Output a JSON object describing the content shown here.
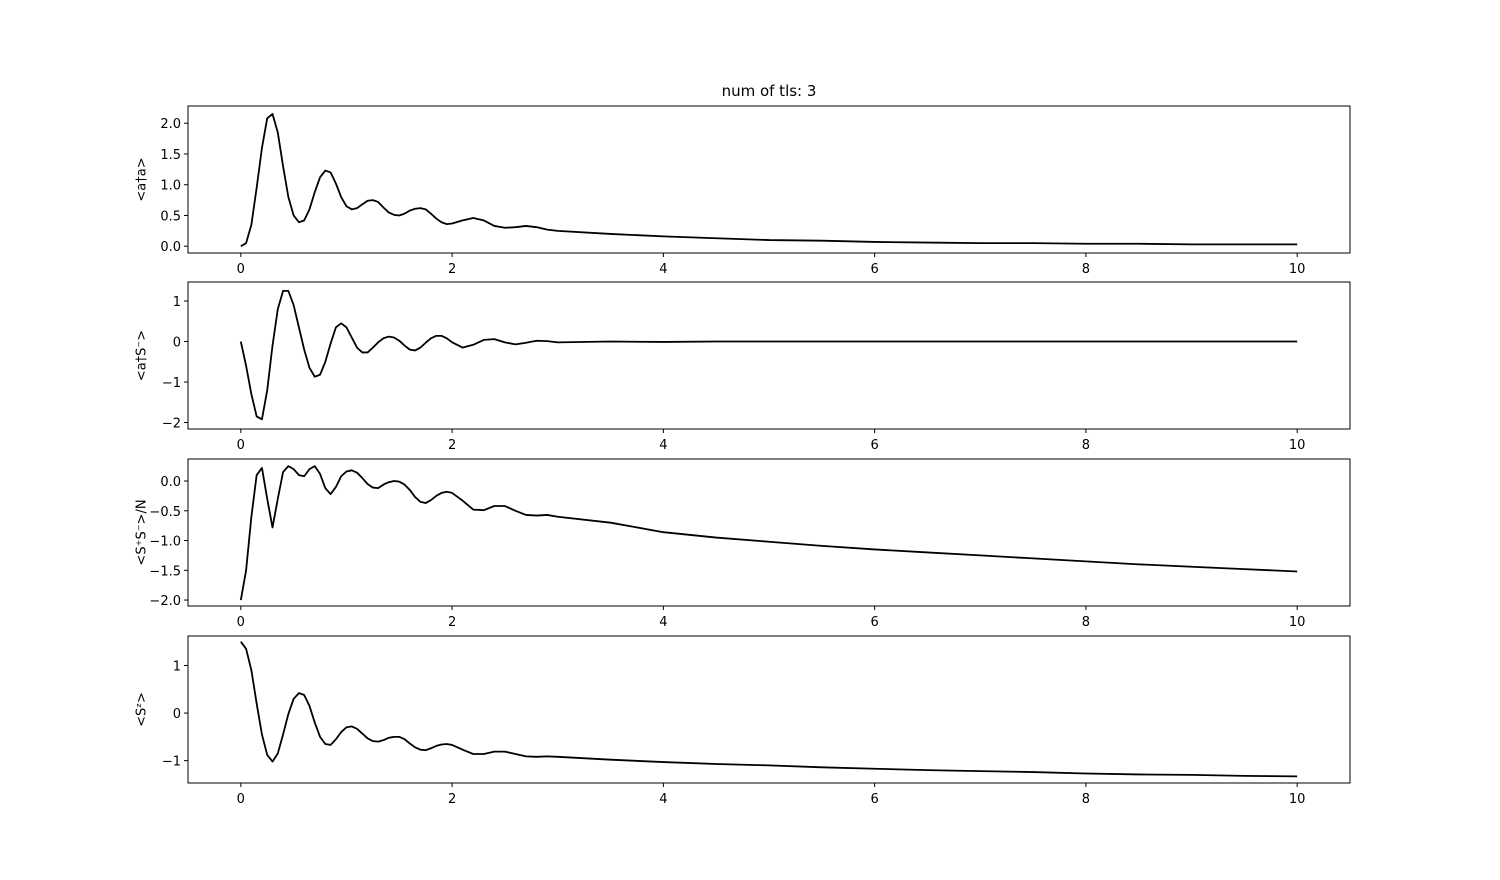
{
  "chart_data": [
    {
      "type": "line",
      "title": "num of tls: 3",
      "ylabel": "<a†a>",
      "x": [
        0,
        0.05,
        0.1,
        0.15,
        0.2,
        0.25,
        0.3,
        0.35,
        0.4,
        0.45,
        0.5,
        0.55,
        0.6,
        0.65,
        0.7,
        0.75,
        0.8,
        0.85,
        0.9,
        0.95,
        1.0,
        1.05,
        1.1,
        1.15,
        1.2,
        1.25,
        1.3,
        1.35,
        1.4,
        1.45,
        1.5,
        1.55,
        1.6,
        1.65,
        1.7,
        1.75,
        1.8,
        1.85,
        1.9,
        1.95,
        2.0,
        2.1,
        2.2,
        2.3,
        2.4,
        2.5,
        2.6,
        2.7,
        2.8,
        2.9,
        3.0,
        3.5,
        4,
        4.5,
        5,
        5.5,
        6,
        6.5,
        7,
        7.5,
        8,
        8.5,
        9,
        9.5,
        10
      ],
      "values": [
        0,
        0.05,
        0.35,
        0.95,
        1.6,
        2.08,
        2.15,
        1.85,
        1.3,
        0.8,
        0.5,
        0.39,
        0.42,
        0.6,
        0.88,
        1.12,
        1.23,
        1.2,
        1.02,
        0.8,
        0.65,
        0.6,
        0.62,
        0.68,
        0.74,
        0.75,
        0.72,
        0.63,
        0.55,
        0.51,
        0.5,
        0.53,
        0.58,
        0.61,
        0.62,
        0.6,
        0.53,
        0.45,
        0.39,
        0.36,
        0.37,
        0.42,
        0.46,
        0.42,
        0.33,
        0.3,
        0.31,
        0.33,
        0.31,
        0.27,
        0.25,
        0.2,
        0.16,
        0.13,
        0.1,
        0.09,
        0.07,
        0.06,
        0.05,
        0.05,
        0.04,
        0.04,
        0.03,
        0.03,
        0.03
      ],
      "color": "#000000",
      "xlim": [
        -0.5,
        10.5
      ],
      "ylim": [
        -0.11,
        2.28
      ],
      "xticks": [
        0,
        2,
        4,
        6,
        8,
        10
      ],
      "yticks": [
        {
          "value": 0,
          "label": "0.0"
        },
        0.5,
        {
          "value": 1,
          "label": "1.0"
        },
        1.5,
        {
          "value": 2,
          "label": "2.0"
        }
      ]
    },
    {
      "type": "line",
      "ylabel": "<a†S⁻>",
      "x": [
        0,
        0.05,
        0.1,
        0.15,
        0.2,
        0.25,
        0.3,
        0.35,
        0.4,
        0.45,
        0.5,
        0.55,
        0.6,
        0.65,
        0.7,
        0.75,
        0.8,
        0.85,
        0.9,
        0.95,
        1.0,
        1.05,
        1.1,
        1.15,
        1.2,
        1.25,
        1.3,
        1.35,
        1.4,
        1.45,
        1.5,
        1.55,
        1.6,
        1.65,
        1.7,
        1.75,
        1.8,
        1.85,
        1.9,
        1.95,
        2.0,
        2.1,
        2.2,
        2.3,
        2.4,
        2.5,
        2.6,
        2.7,
        2.8,
        2.9,
        3.0,
        3.5,
        4,
        4.5,
        5,
        5.5,
        6,
        6.5,
        7,
        7.5,
        8,
        8.5,
        9,
        9.5,
        10
      ],
      "values": [
        0,
        -0.6,
        -1.3,
        -1.85,
        -1.92,
        -1.2,
        -0.1,
        0.8,
        1.25,
        1.25,
        0.9,
        0.35,
        -0.2,
        -0.65,
        -0.87,
        -0.82,
        -0.5,
        -0.05,
        0.35,
        0.45,
        0.35,
        0.1,
        -0.15,
        -0.27,
        -0.27,
        -0.15,
        -0.02,
        0.08,
        0.12,
        0.1,
        0.02,
        -0.1,
        -0.2,
        -0.22,
        -0.15,
        -0.03,
        0.08,
        0.14,
        0.14,
        0.08,
        -0.02,
        -0.15,
        -0.08,
        0.04,
        0.06,
        -0.02,
        -0.07,
        -0.03,
        0.02,
        0.01,
        -0.02,
        0,
        -0.01,
        0,
        0,
        0,
        0,
        0,
        0,
        0,
        0,
        0,
        0,
        0,
        0
      ],
      "color": "#000000",
      "xlim": [
        -0.5,
        10.5
      ],
      "ylim": [
        -2.16,
        1.47
      ],
      "xticks": [
        0,
        2,
        4,
        6,
        8,
        10
      ],
      "yticks": [
        {
          "value": -2,
          "label": "−2"
        },
        {
          "value": -1,
          "label": "−1"
        },
        0,
        1
      ]
    },
    {
      "type": "line",
      "ylabel": "<S⁺S⁻>/N",
      "x": [
        0,
        0.05,
        0.1,
        0.15,
        0.2,
        0.25,
        0.3,
        0.35,
        0.4,
        0.45,
        0.5,
        0.55,
        0.6,
        0.65,
        0.7,
        0.75,
        0.8,
        0.85,
        0.9,
        0.95,
        1.0,
        1.05,
        1.1,
        1.15,
        1.2,
        1.25,
        1.3,
        1.35,
        1.4,
        1.45,
        1.5,
        1.55,
        1.6,
        1.65,
        1.7,
        1.75,
        1.8,
        1.85,
        1.9,
        1.95,
        2.0,
        2.1,
        2.2,
        2.3,
        2.4,
        2.5,
        2.6,
        2.7,
        2.8,
        2.9,
        3.0,
        3.5,
        4,
        4.5,
        5,
        5.5,
        6,
        6.5,
        7,
        7.5,
        8,
        8.5,
        9,
        9.5,
        10
      ],
      "values": [
        -2.0,
        -1.5,
        -0.6,
        0.1,
        0.22,
        -0.3,
        -0.78,
        -0.3,
        0.15,
        0.25,
        0.2,
        0.1,
        0.08,
        0.2,
        0.25,
        0.12,
        -0.12,
        -0.22,
        -0.1,
        0.08,
        0.16,
        0.18,
        0.14,
        0.05,
        -0.05,
        -0.11,
        -0.12,
        -0.06,
        -0.02,
        0,
        -0.01,
        -0.06,
        -0.15,
        -0.27,
        -0.35,
        -0.37,
        -0.32,
        -0.25,
        -0.2,
        -0.18,
        -0.2,
        -0.33,
        -0.48,
        -0.49,
        -0.42,
        -0.42,
        -0.5,
        -0.57,
        -0.58,
        -0.57,
        -0.6,
        -0.7,
        -0.86,
        -0.95,
        -1.02,
        -1.09,
        -1.15,
        -1.2,
        -1.25,
        -1.3,
        -1.35,
        -1.4,
        -1.44,
        -1.48,
        -1.52
      ],
      "color": "#000000",
      "xlim": [
        -0.5,
        10.5
      ],
      "ylim": [
        -2.1,
        0.37
      ],
      "xticks": [
        0,
        2,
        4,
        6,
        8,
        10
      ],
      "yticks": [
        {
          "value": -2,
          "label": "−2.0"
        },
        {
          "value": -1.5,
          "label": "−1.5"
        },
        {
          "value": -1,
          "label": "−1.0"
        },
        {
          "value": -0.5,
          "label": "−0.5"
        },
        {
          "value": 0,
          "label": "0.0"
        }
      ]
    },
    {
      "type": "line",
      "ylabel": "<Sᶻ>",
      "x": [
        0,
        0.05,
        0.1,
        0.15,
        0.2,
        0.25,
        0.3,
        0.35,
        0.4,
        0.45,
        0.5,
        0.55,
        0.6,
        0.65,
        0.7,
        0.75,
        0.8,
        0.85,
        0.9,
        0.95,
        1.0,
        1.05,
        1.1,
        1.15,
        1.2,
        1.25,
        1.3,
        1.35,
        1.4,
        1.45,
        1.5,
        1.55,
        1.6,
        1.65,
        1.7,
        1.75,
        1.8,
        1.85,
        1.9,
        1.95,
        2.0,
        2.1,
        2.2,
        2.3,
        2.4,
        2.5,
        2.6,
        2.7,
        2.8,
        2.9,
        3.0,
        3.5,
        4,
        4.5,
        5,
        5.5,
        6,
        6.5,
        7,
        7.5,
        8,
        8.5,
        9,
        9.5,
        10
      ],
      "values": [
        1.5,
        1.35,
        0.9,
        0.2,
        -0.45,
        -0.88,
        -1.02,
        -0.85,
        -0.45,
        -0.02,
        0.3,
        0.42,
        0.38,
        0.15,
        -0.2,
        -0.5,
        -0.65,
        -0.67,
        -0.55,
        -0.4,
        -0.3,
        -0.28,
        -0.33,
        -0.43,
        -0.53,
        -0.59,
        -0.6,
        -0.57,
        -0.52,
        -0.5,
        -0.5,
        -0.55,
        -0.64,
        -0.72,
        -0.77,
        -0.78,
        -0.74,
        -0.69,
        -0.66,
        -0.65,
        -0.67,
        -0.77,
        -0.86,
        -0.86,
        -0.81,
        -0.81,
        -0.86,
        -0.91,
        -0.92,
        -0.91,
        -0.92,
        -0.98,
        -1.03,
        -1.07,
        -1.1,
        -1.14,
        -1.17,
        -1.2,
        -1.22,
        -1.24,
        -1.27,
        -1.29,
        -1.3,
        -1.32,
        -1.33
      ],
      "color": "#000000",
      "xlim": [
        -0.5,
        10.5
      ],
      "ylim": [
        -1.47,
        1.62
      ],
      "xticks": [
        0,
        2,
        4,
        6,
        8,
        10
      ],
      "yticks": [
        {
          "value": -1,
          "label": "−1"
        },
        0,
        1
      ]
    }
  ]
}
